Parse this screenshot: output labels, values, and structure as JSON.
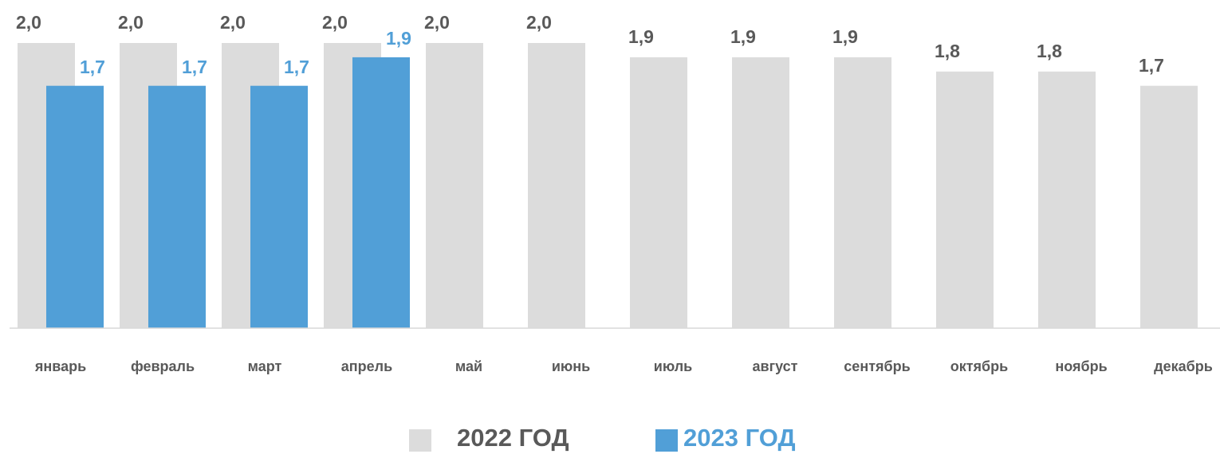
{
  "chart_data": {
    "type": "bar",
    "categories": [
      "январь",
      "февраль",
      "март",
      "апрель",
      "май",
      "июнь",
      "июль",
      "август",
      "сентябрь",
      "октябрь",
      "ноябрь",
      "декабрь"
    ],
    "ylim": [
      0,
      2
    ],
    "series": [
      {
        "name": "2022 ГОД",
        "color": "#dcdcdc",
        "values": [
          2.0,
          2.0,
          2.0,
          2.0,
          2.0,
          2.0,
          1.9,
          1.9,
          1.9,
          1.8,
          1.8,
          1.7
        ],
        "value_labels": [
          "2,0",
          "2,0",
          "2,0",
          "2,0",
          "2,0",
          "2,0",
          "1,9",
          "1,9",
          "1,9",
          "1,8",
          "1,8",
          "1,7"
        ]
      },
      {
        "name": "2023 ГОД",
        "color": "#519fd7",
        "values": [
          1.7,
          1.7,
          1.7,
          1.9,
          null,
          null,
          null,
          null,
          null,
          null,
          null,
          null
        ],
        "value_labels": [
          "1,7",
          "1,7",
          "1,7",
          "1,9",
          null,
          null,
          null,
          null,
          null,
          null,
          null,
          null
        ]
      }
    ]
  }
}
